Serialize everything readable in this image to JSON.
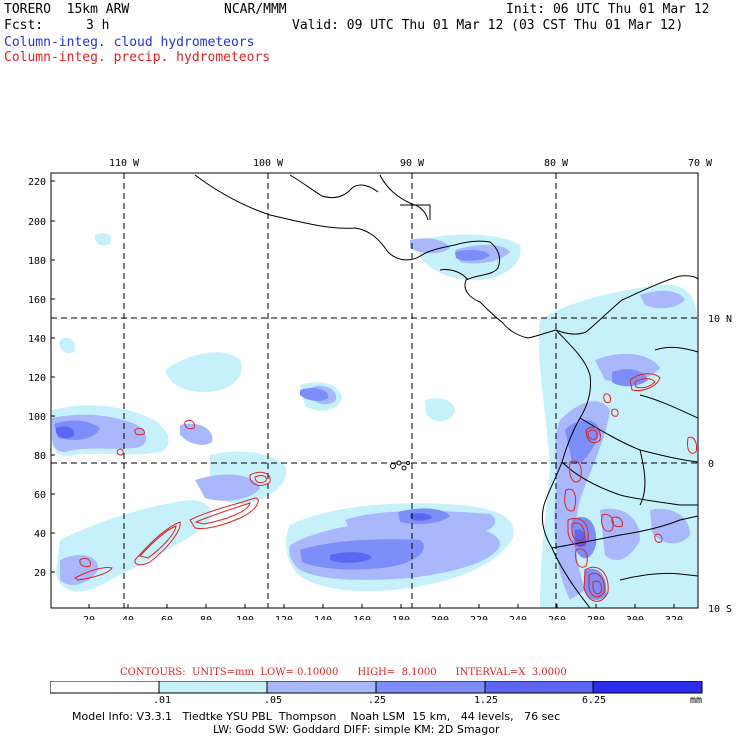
{
  "header": {
    "model": "TORERO  15km ARW",
    "org": "NCAR/MMM",
    "init": "Init: 06 UTC Thu 01 Mar 12",
    "fcst_label": "Fcst:",
    "fcst_value": "3 h",
    "valid": "Valid: 09 UTC Thu 01 Mar 12 (03 CST Thu 01 Mar 12)",
    "field1": "Column-integ. cloud hydrometeors",
    "field2": "Column-integ. precip. hydrometeors"
  },
  "map": {
    "lon_labels": [
      "110 W",
      "100 W",
      "90 W",
      "80 W",
      "70 W"
    ],
    "lat_labels": [
      "10 N",
      "0",
      "10 S"
    ],
    "y_ticks": [
      "220",
      "200",
      "180",
      "160",
      "140",
      "120",
      "100",
      "80",
      "60",
      "40",
      "20"
    ],
    "x_ticks": [
      "20",
      "40",
      "60",
      "80",
      "100",
      "120",
      "140",
      "160",
      "180",
      "200",
      "220",
      "240",
      "260",
      "280",
      "300",
      "320"
    ],
    "colors": {
      "light": "#c6f1fb",
      "pale_blue": "#a9b7fb",
      "mid_blue": "#7d8ef8",
      "blue": "#5b66f5",
      "deep_blue": "#3a3ef0",
      "contour": "#dd2222"
    }
  },
  "contours": {
    "text": "CONTOURS:  UNITS=mm  LOW= 0.10000      HIGH=  8.1000      INTERVAL=X  3.0000"
  },
  "colorbar": {
    "labels": [
      ".01",
      ".05",
      ".25",
      "1.25",
      "6.25"
    ],
    "unit": "mm",
    "colors": [
      "#ffffff",
      "#c6f1fb",
      "#a9b7fb",
      "#7d8ef8",
      "#5b66f5",
      "#3a3ef0",
      "#2222ee"
    ]
  },
  "model_info": {
    "line1": "Model Info: V3.3.1   Tiedtke YSU PBL  Thompson    Noah LSM  15 km,   44 levels,   76 sec",
    "line2": "LW: Godd SW: Goddard DIFF: simple KM: 2D Smagor"
  }
}
